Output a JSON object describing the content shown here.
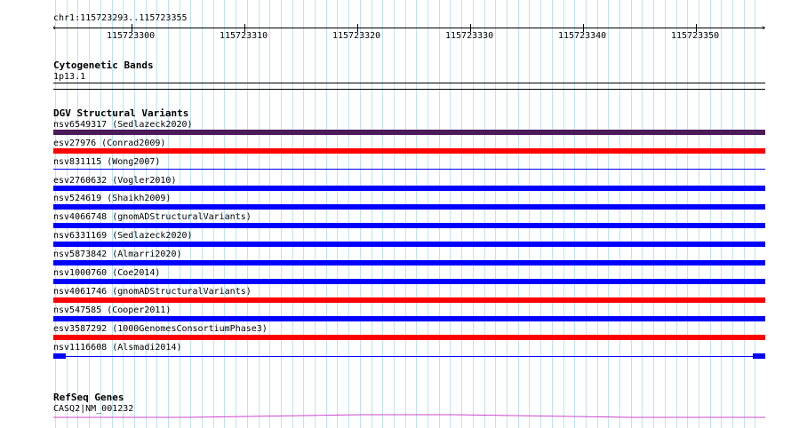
{
  "location": "chr1:115723293..115723355",
  "ruler": {
    "ticks": [
      "115723300",
      "115723310",
      "115723320",
      "115723330",
      "115723340",
      "115723350"
    ]
  },
  "cytoband": {
    "title": "Cytogenetic Bands",
    "label": "1p13.1"
  },
  "dgv": {
    "title": "DGV Structural Variants",
    "features": [
      {
        "label": "nsv6549317 (Sedlazeck2020)",
        "color": "#4b1b5a"
      },
      {
        "label": "esv27976 (Conrad2009)",
        "color": "#ff0000"
      },
      {
        "label": "nsv831115 (Wong2007)",
        "color": "#0000ff"
      },
      {
        "label": "esv2760632 (Vogler2010)",
        "color": "#0000ff"
      },
      {
        "label": "nsv524619 (Shaikh2009)",
        "color": "#0000ff"
      },
      {
        "label": "nsv4066748 (gnomADStructuralVariants)",
        "color": "#0000ff"
      },
      {
        "label": "nsv6331169 (Sedlazeck2020)",
        "color": "#0000ff"
      },
      {
        "label": "nsv5873842 (Almarri2020)",
        "color": "#0000ff"
      },
      {
        "label": "nsv1000760 (Coe2014)",
        "color": "#ff0000"
      },
      {
        "label": "nsv4061746 (gnomADStructuralVariants)",
        "color": "#0000ff"
      },
      {
        "label": "nsv547585 (Cooper2011)",
        "color": "#ff0000"
      },
      {
        "label": "esv3587292 (1000GenomesConsortiumPhase3)",
        "color": "#0000ff"
      },
      {
        "label": "nsv1116608 (Alsmadi2014)",
        "color": "#0000ff"
      }
    ]
  },
  "refseq": {
    "title": "RefSeq Genes",
    "label": "CASQ2|NM_001232",
    "color": "#cc44cc"
  }
}
